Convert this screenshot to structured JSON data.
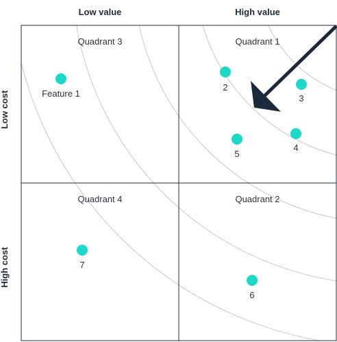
{
  "columns": {
    "low_value": "Low value",
    "high_value": "High value"
  },
  "rows": {
    "low_cost": "Low cost",
    "high_cost": "High cost"
  },
  "quadrants": {
    "q1": "Quadrant 1",
    "q2": "Quadrant 2",
    "q3": "Quadrant 3",
    "q4": "Quadrant 4"
  },
  "features": [
    {
      "id": "f1",
      "label": "Feature 1"
    },
    {
      "id": "f2",
      "label": "2"
    },
    {
      "id": "f3",
      "label": "3"
    },
    {
      "id": "f4",
      "label": "4"
    },
    {
      "id": "f5",
      "label": "5"
    },
    {
      "id": "f6",
      "label": "6"
    },
    {
      "id": "f7",
      "label": "7"
    }
  ],
  "colors": {
    "point": "#1ad9c9",
    "arrow": "#1b2a3a",
    "grid": "#1f2b3a",
    "arc": "#c8c8c8"
  }
}
